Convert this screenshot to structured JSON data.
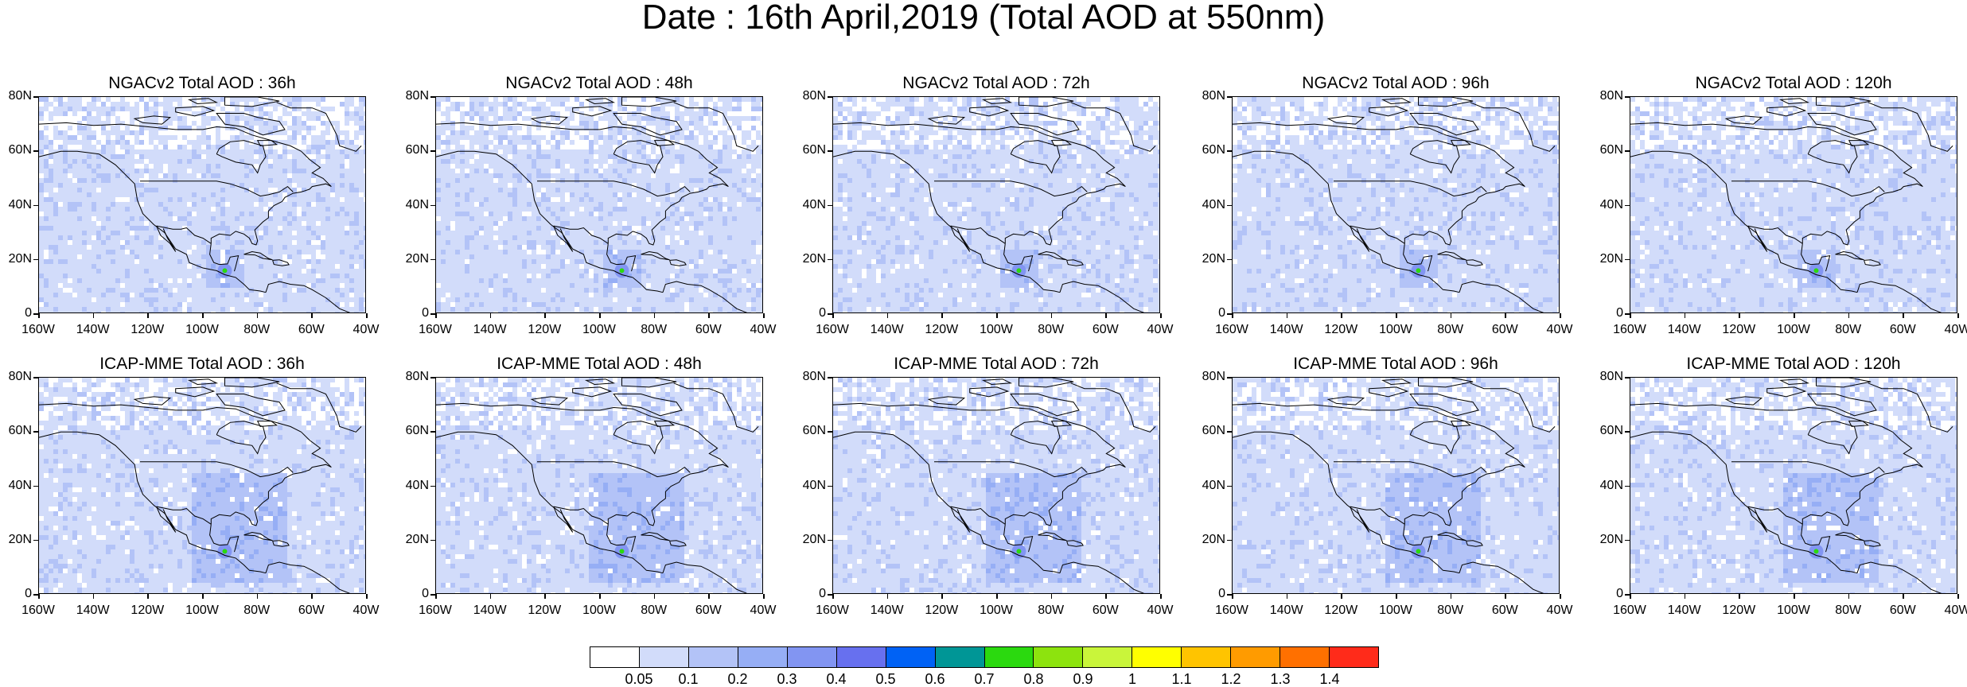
{
  "figure_title": "Date : 16th April,2019 (Total AOD at 550nm)",
  "lat_ticks": [
    "80N",
    "60N",
    "40N",
    "20N",
    "0"
  ],
  "lon_ticks": [
    "160W",
    "140W",
    "120W",
    "100W",
    "80W",
    "60W",
    "40W"
  ],
  "colorbar": {
    "labels": [
      "0.05",
      "0.1",
      "0.2",
      "0.3",
      "0.4",
      "0.5",
      "0.6",
      "0.7",
      "0.8",
      "0.9",
      "1",
      "1.1",
      "1.2",
      "1.3",
      "1.4"
    ],
    "colors": [
      "#ffffff",
      "#d2dcfa",
      "#b3c3f7",
      "#96aef5",
      "#8295f2",
      "#6770ef",
      "#0062f5",
      "#009696",
      "#2bd90f",
      "#8de30e",
      "#c9f53a",
      "#ffff00",
      "#ffc400",
      "#ff9b00",
      "#ff7000",
      "#ff2b1a"
    ]
  },
  "panels": [
    {
      "title": "NGACv2 Total AOD : 36h",
      "model": "NGACv2",
      "lead": "36h"
    },
    {
      "title": "NGACv2 Total AOD : 48h",
      "model": "NGACv2",
      "lead": "48h"
    },
    {
      "title": "NGACv2 Total AOD : 72h",
      "model": "NGACv2",
      "lead": "72h"
    },
    {
      "title": "NGACv2 Total AOD : 96h",
      "model": "NGACv2",
      "lead": "96h"
    },
    {
      "title": "NGACv2 Total AOD : 120h",
      "model": "NGACv2",
      "lead": "120h"
    },
    {
      "title": "ICAP-MME Total AOD : 36h",
      "model": "ICAP-MME",
      "lead": "36h"
    },
    {
      "title": "ICAP-MME Total AOD : 48h",
      "model": "ICAP-MME",
      "lead": "48h"
    },
    {
      "title": "ICAP-MME Total AOD : 72h",
      "model": "ICAP-MME",
      "lead": "72h"
    },
    {
      "title": "ICAP-MME Total AOD : 96h",
      "model": "ICAP-MME",
      "lead": "96h"
    },
    {
      "title": "ICAP-MME Total AOD : 120h",
      "model": "ICAP-MME",
      "lead": "120h"
    }
  ]
}
